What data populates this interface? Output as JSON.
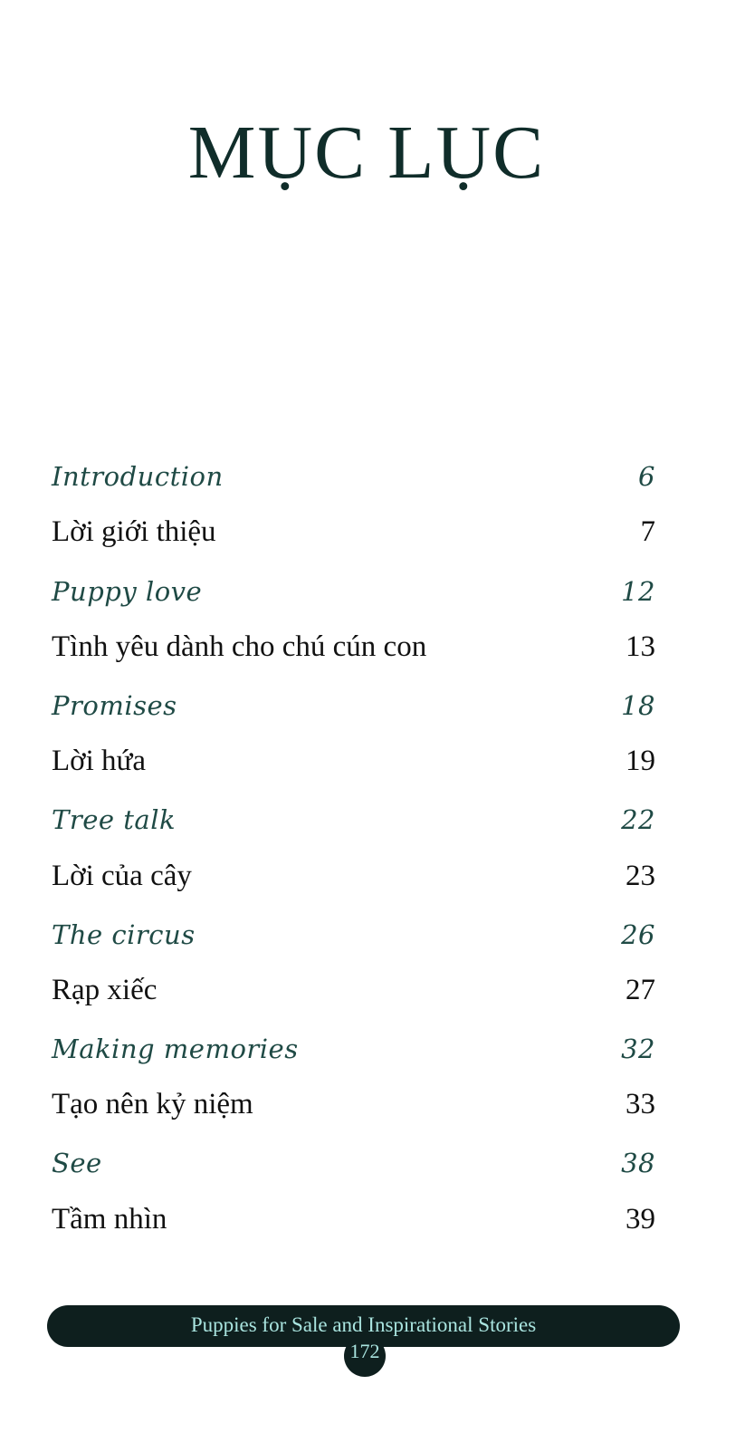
{
  "title": "MỤC LỤC",
  "toc": [
    {
      "label": "Introduction",
      "page": "6",
      "lang": "en"
    },
    {
      "label": "Lời giới thiệu",
      "page": "7",
      "lang": "vi"
    },
    {
      "label": "Puppy love",
      "page": "12",
      "lang": "en"
    },
    {
      "label": "Tình yêu dành cho chú cún con",
      "page": "13",
      "lang": "vi"
    },
    {
      "label": "Promises",
      "page": "18",
      "lang": "en"
    },
    {
      "label": "Lời hứa",
      "page": "19",
      "lang": "vi"
    },
    {
      "label": "Tree talk",
      "page": "22",
      "lang": "en"
    },
    {
      "label": "Lời của cây",
      "page": "23",
      "lang": "vi"
    },
    {
      "label": "The circus",
      "page": "26",
      "lang": "en"
    },
    {
      "label": "Rạp xiếc",
      "page": "27",
      "lang": "vi"
    },
    {
      "label": "Making memories",
      "page": "32",
      "lang": "en"
    },
    {
      "label": "Tạo nên kỷ niệm",
      "page": "33",
      "lang": "vi"
    },
    {
      "label": "See",
      "page": "38",
      "lang": "en"
    },
    {
      "label": "Tầm nhìn",
      "page": "39",
      "lang": "vi"
    }
  ],
  "footer": {
    "book_title": "Puppies for Sale and Inspirational Stories",
    "page_number": "172"
  },
  "colors": {
    "english_entries": "#1f4a45",
    "title": "#102d2a",
    "footer_bar": "#0e1f1e",
    "footer_text": "#a9e4df"
  }
}
